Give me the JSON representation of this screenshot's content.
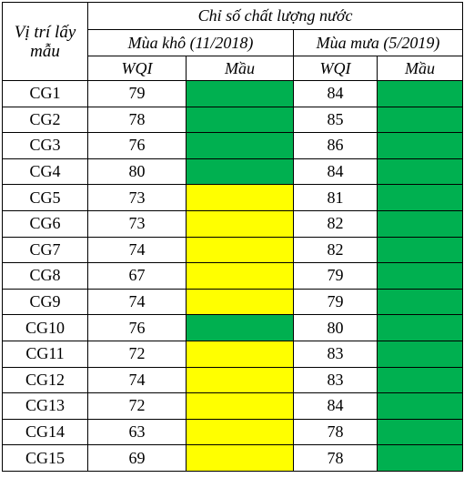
{
  "header": {
    "site_label": "Vị trí lấy mẫu",
    "group_label": "Chỉ số chất lượng nước",
    "dry_season": "Mùa khô (11/2018)",
    "wet_season": "Mùa mưa (5/2019)",
    "wqi_label": "WQI",
    "color_label": "Mầu"
  },
  "colors": {
    "green": "#00b050",
    "yellow": "#ffff00"
  },
  "rows": [
    {
      "site": "CG1",
      "dry_wqi": "79",
      "dry_color": "green",
      "wet_wqi": "84",
      "wet_color": "green"
    },
    {
      "site": "CG2",
      "dry_wqi": "78",
      "dry_color": "green",
      "wet_wqi": "85",
      "wet_color": "green"
    },
    {
      "site": "CG3",
      "dry_wqi": "76",
      "dry_color": "green",
      "wet_wqi": "86",
      "wet_color": "green"
    },
    {
      "site": "CG4",
      "dry_wqi": "80",
      "dry_color": "green",
      "wet_wqi": "84",
      "wet_color": "green"
    },
    {
      "site": "CG5",
      "dry_wqi": "73",
      "dry_color": "yellow",
      "wet_wqi": "81",
      "wet_color": "green"
    },
    {
      "site": "CG6",
      "dry_wqi": "73",
      "dry_color": "yellow",
      "wet_wqi": "82",
      "wet_color": "green"
    },
    {
      "site": "CG7",
      "dry_wqi": "74",
      "dry_color": "yellow",
      "wet_wqi": "82",
      "wet_color": "green"
    },
    {
      "site": "CG8",
      "dry_wqi": "67",
      "dry_color": "yellow",
      "wet_wqi": "79",
      "wet_color": "green"
    },
    {
      "site": "CG9",
      "dry_wqi": "74",
      "dry_color": "yellow",
      "wet_wqi": "79",
      "wet_color": "green"
    },
    {
      "site": "CG10",
      "dry_wqi": "76",
      "dry_color": "green",
      "wet_wqi": "80",
      "wet_color": "green"
    },
    {
      "site": "CG11",
      "dry_wqi": "72",
      "dry_color": "yellow",
      "wet_wqi": "83",
      "wet_color": "green"
    },
    {
      "site": "CG12",
      "dry_wqi": "74",
      "dry_color": "yellow",
      "wet_wqi": "83",
      "wet_color": "green"
    },
    {
      "site": "CG13",
      "dry_wqi": "72",
      "dry_color": "yellow",
      "wet_wqi": "84",
      "wet_color": "green"
    },
    {
      "site": "CG14",
      "dry_wqi": "63",
      "dry_color": "yellow",
      "wet_wqi": "78",
      "wet_color": "green"
    },
    {
      "site": "CG15",
      "dry_wqi": "69",
      "dry_color": "yellow",
      "wet_wqi": "78",
      "wet_color": "green"
    }
  ]
}
